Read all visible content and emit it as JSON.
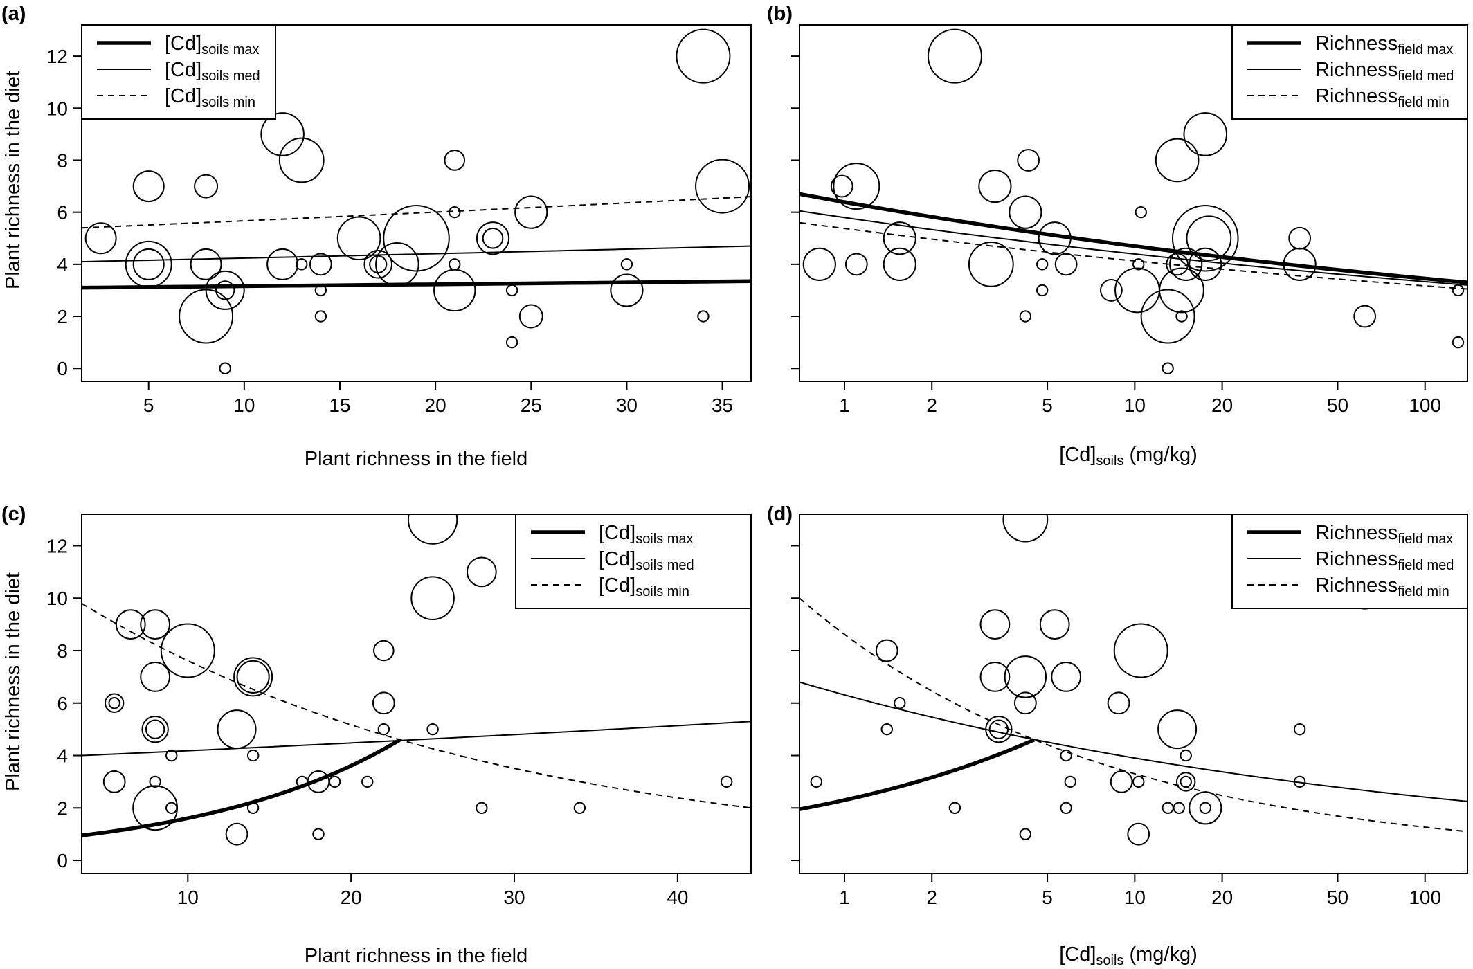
{
  "figure": {
    "ylabel": "Plant richness in the diet",
    "xlabel_field": "Plant richness in the field",
    "xlabel_cd": "[Cd]",
    "xlabel_cd_sub": "soils",
    "xlabel_cd_unit": " (mg/kg)",
    "panel_labels": [
      "(a)",
      "(b)",
      "(c)",
      "(d)"
    ]
  },
  "chart_data": [
    {
      "panel": "(a)",
      "type": "scatter",
      "scale": "linear",
      "xlabel": "Plant richness in the field",
      "ylabel": "Plant richness in the diet",
      "xlim": [
        1.5,
        36.5
      ],
      "ylim": [
        -0.5,
        13.2
      ],
      "xticks": [
        5,
        10,
        15,
        20,
        25,
        30,
        35
      ],
      "yticks": [
        0,
        2,
        4,
        6,
        8,
        10,
        12
      ],
      "legend_position": "top-left",
      "legend": [
        {
          "main": "[Cd]",
          "sub": "soils max",
          "style": "thick"
        },
        {
          "main": "[Cd]",
          "sub": "soils med",
          "style": "thin"
        },
        {
          "main": "[Cd]",
          "sub": "soils min",
          "style": "dashed"
        }
      ],
      "lines": [
        {
          "style": "thick",
          "model": "exp",
          "x0": 1.5,
          "y0": 3.1,
          "x1": 36.5,
          "y1": 3.35
        },
        {
          "style": "thin",
          "model": "exp",
          "x0": 1.5,
          "y0": 4.1,
          "x1": 36.5,
          "y1": 4.7
        },
        {
          "style": "dashed",
          "model": "exp",
          "x0": 1.5,
          "y0": 5.4,
          "x1": 36.5,
          "y1": 6.6
        }
      ],
      "points": [
        {
          "x": 5,
          "y": 7,
          "s": 2
        },
        {
          "x": 8,
          "y": 7,
          "s": 1.5
        },
        {
          "x": 2.5,
          "y": 5,
          "s": 2
        },
        {
          "x": 5,
          "y": 4,
          "s": 3
        },
        {
          "x": 5,
          "y": 4,
          "s": 2
        },
        {
          "x": 8,
          "y": 2,
          "s": 3.5
        },
        {
          "x": 8,
          "y": 4,
          "s": 2
        },
        {
          "x": 9,
          "y": 3,
          "s": 2.5
        },
        {
          "x": 9,
          "y": 3,
          "s": 1.2
        },
        {
          "x": 9,
          "y": 0,
          "s": 0.7
        },
        {
          "x": 12,
          "y": 9,
          "s": 2.8
        },
        {
          "x": 13,
          "y": 8,
          "s": 2.9
        },
        {
          "x": 12,
          "y": 4,
          "s": 2
        },
        {
          "x": 13,
          "y": 4,
          "s": 0.7
        },
        {
          "x": 14,
          "y": 4,
          "s": 1.4
        },
        {
          "x": 14,
          "y": 3,
          "s": 0.7
        },
        {
          "x": 14,
          "y": 2,
          "s": 0.7
        },
        {
          "x": 16,
          "y": 5,
          "s": 2.8
        },
        {
          "x": 17,
          "y": 4,
          "s": 1.8
        },
        {
          "x": 17,
          "y": 4,
          "s": 1.1
        },
        {
          "x": 18,
          "y": 4,
          "s": 2.8
        },
        {
          "x": 19,
          "y": 5,
          "s": 4.3
        },
        {
          "x": 21,
          "y": 8,
          "s": 1.3
        },
        {
          "x": 21,
          "y": 6,
          "s": 0.7
        },
        {
          "x": 21,
          "y": 4,
          "s": 0.7
        },
        {
          "x": 21,
          "y": 3,
          "s": 2.7
        },
        {
          "x": 23,
          "y": 5,
          "s": 2.1
        },
        {
          "x": 23,
          "y": 5,
          "s": 1.3
        },
        {
          "x": 24,
          "y": 3,
          "s": 0.7
        },
        {
          "x": 24,
          "y": 1,
          "s": 0.7
        },
        {
          "x": 25,
          "y": 6,
          "s": 2.1
        },
        {
          "x": 25,
          "y": 2,
          "s": 1.5
        },
        {
          "x": 30,
          "y": 4,
          "s": 0.7
        },
        {
          "x": 30,
          "y": 3,
          "s": 2.1
        },
        {
          "x": 34,
          "y": 12,
          "s": 3.5
        },
        {
          "x": 34,
          "y": 2,
          "s": 0.7
        },
        {
          "x": 35,
          "y": 7,
          "s": 3.5
        }
      ]
    },
    {
      "panel": "(b)",
      "type": "scatter",
      "scale": "log-x",
      "xlabel": "[Cd]soils (mg/kg)",
      "ylabel": "",
      "xlim": [
        0.7,
        140
      ],
      "ylim": [
        -0.5,
        13.2
      ],
      "xticks": [
        1,
        2,
        5,
        10,
        20,
        50,
        100
      ],
      "yticks": [
        0,
        2,
        4,
        6,
        8,
        10,
        12
      ],
      "legend_position": "top-right",
      "legend": [
        {
          "main": "Richness",
          "sub": "field max",
          "style": "thick"
        },
        {
          "main": "Richness",
          "sub": "field med",
          "style": "thin"
        },
        {
          "main": "Richness",
          "sub": "field min",
          "style": "dashed"
        }
      ],
      "lines": [
        {
          "style": "thick",
          "model": "exp",
          "x0": 0.7,
          "y0": 6.7,
          "x1": 140,
          "y1": 3.3
        },
        {
          "style": "thin",
          "model": "exp",
          "x0": 0.7,
          "y0": 6.05,
          "x1": 140,
          "y1": 3.2
        },
        {
          "style": "dashed",
          "model": "exp",
          "x0": 0.7,
          "y0": 5.6,
          "x1": 140,
          "y1": 3.05
        }
      ],
      "points": [
        {
          "x": 2.4,
          "y": 12,
          "s": 3.5
        },
        {
          "x": 1.1,
          "y": 7,
          "s": 3
        },
        {
          "x": 0.98,
          "y": 7,
          "s": 1.4
        },
        {
          "x": 0.82,
          "y": 4,
          "s": 2.1
        },
        {
          "x": 1.1,
          "y": 4,
          "s": 1.4
        },
        {
          "x": 1.55,
          "y": 5,
          "s": 2.1
        },
        {
          "x": 1.55,
          "y": 4,
          "s": 2.1
        },
        {
          "x": 3.3,
          "y": 7,
          "s": 2.1
        },
        {
          "x": 3.2,
          "y": 4,
          "s": 2.9
        },
        {
          "x": 4.3,
          "y": 8,
          "s": 1.4
        },
        {
          "x": 4.2,
          "y": 6,
          "s": 2.1
        },
        {
          "x": 4.8,
          "y": 4,
          "s": 0.7
        },
        {
          "x": 4.8,
          "y": 3,
          "s": 0.7
        },
        {
          "x": 4.2,
          "y": 2,
          "s": 0.7
        },
        {
          "x": 5.3,
          "y": 5,
          "s": 2.1
        },
        {
          "x": 5.8,
          "y": 4,
          "s": 1.4
        },
        {
          "x": 8.3,
          "y": 3,
          "s": 1.4
        },
        {
          "x": 10.5,
          "y": 6,
          "s": 0.7
        },
        {
          "x": 10.3,
          "y": 4,
          "s": 0.7
        },
        {
          "x": 10.2,
          "y": 3,
          "s": 2.9
        },
        {
          "x": 13,
          "y": 2,
          "s": 3.5
        },
        {
          "x": 13,
          "y": 0,
          "s": 0.7
        },
        {
          "x": 14,
          "y": 8,
          "s": 2.8
        },
        {
          "x": 14,
          "y": 4,
          "s": 1.4
        },
        {
          "x": 15,
          "y": 4,
          "s": 2.1
        },
        {
          "x": 14.5,
          "y": 3,
          "s": 2.9
        },
        {
          "x": 14.5,
          "y": 2,
          "s": 0.7
        },
        {
          "x": 17.5,
          "y": 9,
          "s": 2.8
        },
        {
          "x": 17.5,
          "y": 5,
          "s": 4.3
        },
        {
          "x": 18,
          "y": 5,
          "s": 2.9
        },
        {
          "x": 17.5,
          "y": 4,
          "s": 2.1
        },
        {
          "x": 37,
          "y": 5,
          "s": 1.4
        },
        {
          "x": 37,
          "y": 4,
          "s": 2.1
        },
        {
          "x": 62,
          "y": 2,
          "s": 1.4
        },
        {
          "x": 130,
          "y": 3,
          "s": 0.7
        },
        {
          "x": 130,
          "y": 1,
          "s": 0.7
        }
      ]
    },
    {
      "panel": "(c)",
      "type": "scatter",
      "scale": "linear",
      "xlabel": "Plant richness in the field",
      "ylabel": "Plant richness in the diet",
      "xlim": [
        3.5,
        44.5
      ],
      "ylim": [
        -0.5,
        13.2
      ],
      "xticks": [
        10,
        20,
        30,
        40
      ],
      "yticks": [
        0,
        2,
        4,
        6,
        8,
        10,
        12
      ],
      "legend_position": "top-right",
      "legend": [
        {
          "main": "[Cd]",
          "sub": "soils max",
          "style": "thick"
        },
        {
          "main": "[Cd]",
          "sub": "soils med",
          "style": "thin"
        },
        {
          "main": "[Cd]",
          "sub": "soils min",
          "style": "dashed"
        }
      ],
      "lines": [
        {
          "style": "thick",
          "model": "exp",
          "x0": 3.5,
          "y0": 0.95,
          "x1": 23,
          "y1": 4.6
        },
        {
          "style": "thin",
          "model": "exp",
          "x0": 3.5,
          "y0": 4.0,
          "x1": 44.5,
          "y1": 5.3
        },
        {
          "style": "dashed",
          "model": "exp",
          "x0": 3.5,
          "y0": 9.8,
          "x1": 44.5,
          "y1": 2.0
        }
      ],
      "points": [
        {
          "x": 25,
          "y": 13,
          "s": 3.2
        },
        {
          "x": 28,
          "y": 11,
          "s": 1.9
        },
        {
          "x": 25,
          "y": 10,
          "s": 2.8
        },
        {
          "x": 6.5,
          "y": 9,
          "s": 1.9
        },
        {
          "x": 8,
          "y": 9,
          "s": 1.9
        },
        {
          "x": 10,
          "y": 8,
          "s": 3.5
        },
        {
          "x": 8,
          "y": 7,
          "s": 1.9
        },
        {
          "x": 14,
          "y": 7,
          "s": 2.5
        },
        {
          "x": 14,
          "y": 7,
          "s": 2.1
        },
        {
          "x": 22,
          "y": 8,
          "s": 1.3
        },
        {
          "x": 5.5,
          "y": 6,
          "s": 1.2
        },
        {
          "x": 5.5,
          "y": 6,
          "s": 0.7
        },
        {
          "x": 22,
          "y": 6,
          "s": 1.4
        },
        {
          "x": 8,
          "y": 5,
          "s": 1.7
        },
        {
          "x": 8,
          "y": 5,
          "s": 1.2
        },
        {
          "x": 13,
          "y": 5,
          "s": 2.5
        },
        {
          "x": 22,
          "y": 5,
          "s": 0.7
        },
        {
          "x": 25,
          "y": 5,
          "s": 0.7
        },
        {
          "x": 9,
          "y": 4,
          "s": 0.7
        },
        {
          "x": 14,
          "y": 4,
          "s": 0.7
        },
        {
          "x": 5.5,
          "y": 3,
          "s": 1.4
        },
        {
          "x": 8,
          "y": 3,
          "s": 0.7
        },
        {
          "x": 17,
          "y": 3,
          "s": 0.7
        },
        {
          "x": 18,
          "y": 3,
          "s": 1.4
        },
        {
          "x": 19,
          "y": 3,
          "s": 0.7
        },
        {
          "x": 21,
          "y": 3,
          "s": 0.7
        },
        {
          "x": 43,
          "y": 3,
          "s": 0.7
        },
        {
          "x": 8,
          "y": 2,
          "s": 2.9
        },
        {
          "x": 9,
          "y": 2,
          "s": 0.7
        },
        {
          "x": 14,
          "y": 2,
          "s": 0.7
        },
        {
          "x": 28,
          "y": 2,
          "s": 0.7
        },
        {
          "x": 34,
          "y": 2,
          "s": 0.7
        },
        {
          "x": 13,
          "y": 1,
          "s": 1.4
        },
        {
          "x": 18,
          "y": 1,
          "s": 0.7
        }
      ]
    },
    {
      "panel": "(d)",
      "type": "scatter",
      "scale": "log-x",
      "xlabel": "[Cd]soils (mg/kg)",
      "ylabel": "",
      "xlim": [
        0.7,
        140
      ],
      "ylim": [
        -0.5,
        13.2
      ],
      "xticks": [
        1,
        2,
        5,
        10,
        20,
        50,
        100
      ],
      "yticks": [
        0,
        2,
        4,
        6,
        8,
        10,
        12
      ],
      "legend_position": "top-right",
      "legend": [
        {
          "main": "Richness",
          "sub": "field max",
          "style": "thick"
        },
        {
          "main": "Richness",
          "sub": "field med",
          "style": "thin"
        },
        {
          "main": "Richness",
          "sub": "field min",
          "style": "dashed"
        }
      ],
      "lines": [
        {
          "style": "thick",
          "model": "exp",
          "x0": 0.7,
          "y0": 1.95,
          "x1": 4.5,
          "y1": 4.6
        },
        {
          "style": "thin",
          "model": "exp",
          "x0": 0.7,
          "y0": 6.8,
          "x1": 140,
          "y1": 2.25
        },
        {
          "style": "dashed",
          "model": "exp",
          "x0": 0.7,
          "y0": 10.0,
          "x1": 140,
          "y1": 1.1
        }
      ],
      "points": [
        {
          "x": 4.2,
          "y": 13,
          "s": 2.9
        },
        {
          "x": 62,
          "y": 10,
          "s": 1.4
        },
        {
          "x": 3.3,
          "y": 9,
          "s": 1.9
        },
        {
          "x": 5.3,
          "y": 9,
          "s": 1.9
        },
        {
          "x": 10.5,
          "y": 8,
          "s": 3.5
        },
        {
          "x": 1.4,
          "y": 8,
          "s": 1.4
        },
        {
          "x": 3.3,
          "y": 7,
          "s": 1.9
        },
        {
          "x": 4.2,
          "y": 7,
          "s": 2.7
        },
        {
          "x": 5.8,
          "y": 7,
          "s": 1.9
        },
        {
          "x": 1.55,
          "y": 6,
          "s": 0.7
        },
        {
          "x": 4.2,
          "y": 6,
          "s": 1.4
        },
        {
          "x": 8.8,
          "y": 6,
          "s": 1.4
        },
        {
          "x": 3.4,
          "y": 5,
          "s": 1.7
        },
        {
          "x": 3.4,
          "y": 5,
          "s": 1.2
        },
        {
          "x": 1.4,
          "y": 5,
          "s": 0.7
        },
        {
          "x": 14,
          "y": 5,
          "s": 2.5
        },
        {
          "x": 37,
          "y": 5,
          "s": 0.7
        },
        {
          "x": 5.8,
          "y": 4,
          "s": 0.7
        },
        {
          "x": 15,
          "y": 4,
          "s": 0.7
        },
        {
          "x": 0.8,
          "y": 3,
          "s": 0.7
        },
        {
          "x": 6,
          "y": 3,
          "s": 0.7
        },
        {
          "x": 9,
          "y": 3,
          "s": 1.4
        },
        {
          "x": 10.3,
          "y": 3,
          "s": 0.7
        },
        {
          "x": 15,
          "y": 3,
          "s": 1.2
        },
        {
          "x": 15,
          "y": 3,
          "s": 0.7
        },
        {
          "x": 37,
          "y": 3,
          "s": 0.7
        },
        {
          "x": 2.4,
          "y": 2,
          "s": 0.7
        },
        {
          "x": 5.8,
          "y": 2,
          "s": 0.7
        },
        {
          "x": 13,
          "y": 2,
          "s": 0.7
        },
        {
          "x": 14.2,
          "y": 2,
          "s": 0.7
        },
        {
          "x": 17.5,
          "y": 2,
          "s": 2.1
        },
        {
          "x": 17.5,
          "y": 2,
          "s": 0.7
        },
        {
          "x": 4.2,
          "y": 1,
          "s": 0.7
        },
        {
          "x": 10.3,
          "y": 1,
          "s": 1.4
        }
      ]
    }
  ]
}
